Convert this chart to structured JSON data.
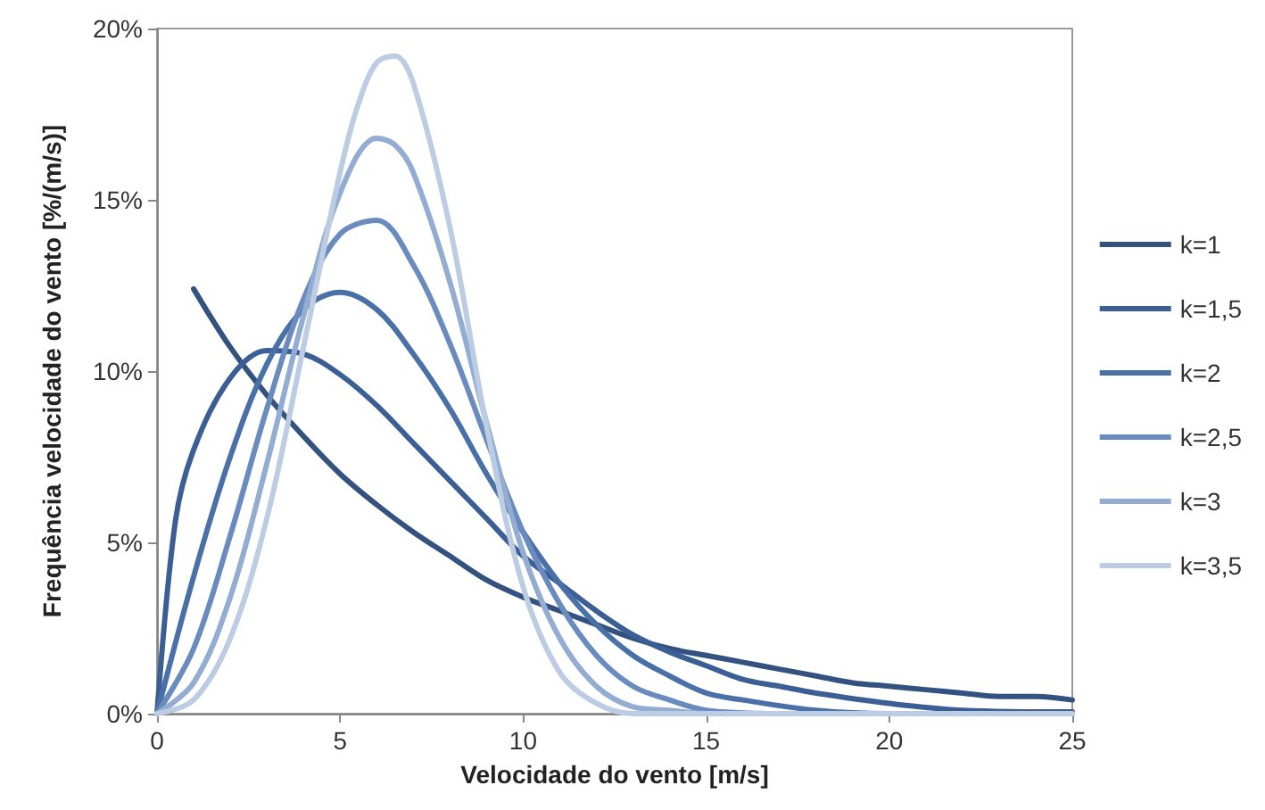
{
  "chart_data": {
    "type": "line",
    "xlabel": "Velocidade do vento [m/s]",
    "ylabel": "Frequência velocidade do vento [%/(m/s)]",
    "xlim": [
      0,
      25
    ],
    "xticks": [
      0,
      5,
      10,
      15,
      20,
      25
    ],
    "ylim": [
      0,
      20
    ],
    "yticks": [
      {
        "value": 0,
        "label": "0%"
      },
      {
        "value": 5,
        "label": "5%"
      },
      {
        "value": 10,
        "label": "10%"
      },
      {
        "value": 15,
        "label": "15%"
      },
      {
        "value": 20,
        "label": "20%"
      }
    ],
    "grid": false,
    "legend": "right",
    "marker": "none",
    "line_style": "solid",
    "series": [
      {
        "name": "k=1",
        "color": "#34527f",
        "x": [
          1,
          2,
          3,
          4,
          5,
          6,
          7,
          8,
          9,
          10,
          11,
          12,
          13,
          14,
          15,
          16,
          17,
          18,
          19,
          20,
          21,
          22,
          23,
          24,
          25
        ],
        "values": [
          12.4,
          10.7,
          9.3,
          8.1,
          7.0,
          6.1,
          5.3,
          4.6,
          3.9,
          3.4,
          3.0,
          2.6,
          2.2,
          1.9,
          1.7,
          1.5,
          1.3,
          1.1,
          0.9,
          0.8,
          0.7,
          0.6,
          0.5,
          0.5,
          0.4
        ]
      },
      {
        "name": "k=1,5",
        "color": "#3b5f94",
        "x": [
          0,
          0.5,
          1,
          2,
          3,
          4,
          5,
          6,
          7,
          8,
          9,
          10,
          11,
          12,
          13,
          14,
          15,
          16,
          17,
          18,
          20,
          22,
          25
        ],
        "values": [
          0,
          5.6,
          7.7,
          9.8,
          10.6,
          10.5,
          9.9,
          9.0,
          7.9,
          6.8,
          5.7,
          4.6,
          3.8,
          3.0,
          2.3,
          1.8,
          1.4,
          1.0,
          0.8,
          0.6,
          0.3,
          0.1,
          0.05
        ]
      },
      {
        "name": "k=2",
        "color": "#4a70a8",
        "x": [
          0,
          1,
          2,
          3,
          4,
          5,
          6,
          7,
          8,
          9,
          10,
          11,
          12,
          13,
          14,
          15,
          16,
          18,
          20,
          25
        ],
        "values": [
          0,
          4.0,
          7.5,
          10.2,
          11.8,
          12.3,
          11.8,
          10.5,
          8.9,
          7.0,
          5.3,
          3.8,
          2.6,
          1.7,
          1.1,
          0.6,
          0.4,
          0.1,
          0,
          0
        ]
      },
      {
        "name": "k=2,5",
        "color": "#6a8bbd",
        "x": [
          0,
          1,
          2,
          3,
          4,
          5,
          6,
          7,
          8,
          9,
          10,
          11,
          12,
          13,
          14,
          15,
          17,
          25
        ],
        "values": [
          0,
          1.9,
          5.2,
          8.9,
          12.1,
          14.0,
          14.4,
          13.1,
          10.8,
          8.0,
          5.3,
          3.2,
          1.7,
          0.8,
          0.4,
          0.1,
          0,
          0
        ]
      },
      {
        "name": "k=3",
        "color": "#93acd1",
        "x": [
          0,
          1,
          2,
          3,
          4,
          5,
          6,
          6.5,
          7,
          8,
          9,
          10,
          11,
          12,
          13,
          14,
          15,
          25
        ],
        "values": [
          0,
          0.9,
          3.4,
          7.3,
          11.6,
          15.2,
          16.8,
          16.6,
          15.8,
          12.6,
          8.5,
          4.7,
          2.2,
          0.8,
          0.2,
          0.1,
          0,
          0
        ]
      },
      {
        "name": "k=3,5",
        "color": "#bccde3",
        "x": [
          0,
          1,
          2,
          3,
          4,
          5,
          5.5,
          6,
          6.5,
          7,
          8,
          9,
          10,
          11,
          12,
          13,
          14,
          25
        ],
        "values": [
          0,
          0.4,
          2.2,
          5.7,
          10.7,
          15.8,
          17.8,
          19.0,
          19.2,
          18.4,
          14.2,
          8.4,
          3.7,
          1.2,
          0.3,
          0,
          0,
          0
        ]
      }
    ]
  }
}
